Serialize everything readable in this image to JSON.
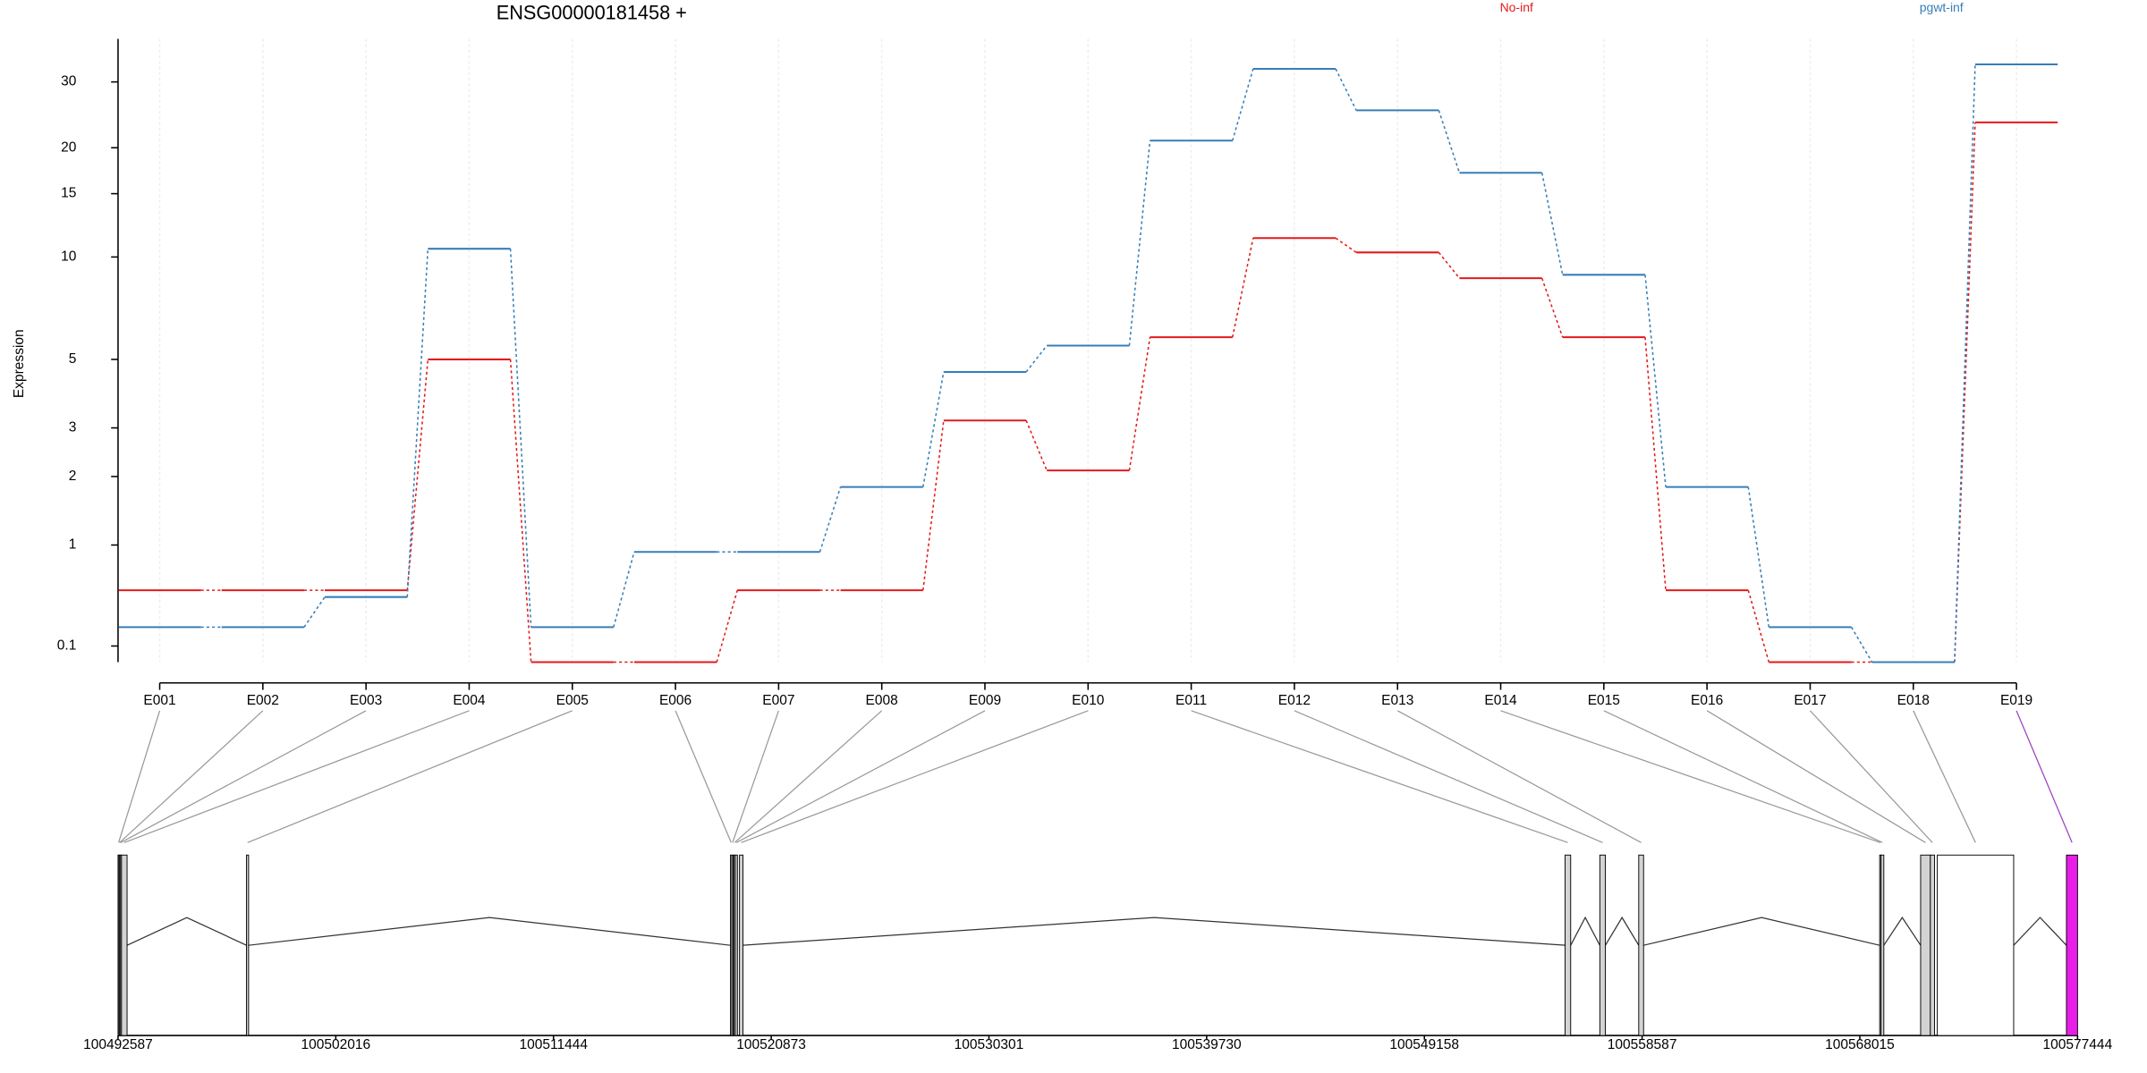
{
  "chart_data": {
    "type": "line",
    "title": "ENSG00000181458 +",
    "y_label": "Expression",
    "categories": [
      "E001",
      "E002",
      "E003",
      "E004",
      "E005",
      "E006",
      "E007",
      "E008",
      "E009",
      "E010",
      "E011",
      "E012",
      "E013",
      "E014",
      "E015",
      "E016",
      "E017",
      "E018",
      "E019"
    ],
    "series": [
      {
        "name": "No-inf",
        "color": "#e41a1c",
        "values": [
          0.53,
          0.53,
          0.53,
          5,
          0,
          0,
          0.53,
          0.53,
          3.18,
          2.11,
          5.84,
          11.3,
          10.3,
          8.7,
          5.84,
          0.53,
          0,
          0,
          23.4
        ]
      },
      {
        "name": "pgwt-inf",
        "color": "#377eb8",
        "values": [
          0.23,
          0.23,
          0.47,
          10.55,
          0.23,
          0.92,
          0.92,
          1.82,
          4.57,
          5.51,
          20.9,
          32.5,
          25.2,
          17.1,
          8.9,
          1.82,
          0.23,
          0,
          33.4
        ]
      }
    ],
    "ylim": [
      0,
      39
    ],
    "yticks": [
      0.1,
      1,
      2,
      3,
      5,
      10,
      15,
      20,
      30
    ],
    "yscale": "log1p",
    "grid": true
  },
  "gene_model": {
    "xlim": [
      100492587,
      100577444
    ],
    "xticks": [
      100492587,
      100502016,
      100511444,
      100520873,
      100530301,
      100539730,
      100549158,
      100558587,
      100568015,
      100577444
    ],
    "exons": [
      {
        "start": 100492587,
        "end": 100492635,
        "color": "#d3d3d3"
      },
      {
        "start": 100492635,
        "end": 100492677,
        "color": "#d3d3d3"
      },
      {
        "start": 100492677,
        "end": 100492737,
        "color": "#d3d3d3"
      },
      {
        "start": 100492737,
        "end": 100492978,
        "color": "#d3d3d3"
      },
      {
        "start": 100498150,
        "end": 100498240,
        "color": "#d3d3d3"
      },
      {
        "start": 100519109,
        "end": 100519169,
        "color": "#d3d3d3"
      },
      {
        "start": 100519169,
        "end": 100519229,
        "color": "#d3d3d3"
      },
      {
        "start": 100519259,
        "end": 100519319,
        "color": "#d3d3d3"
      },
      {
        "start": 100519319,
        "end": 100519409,
        "color": "#d3d3d3"
      },
      {
        "start": 100519499,
        "end": 100519650,
        "color": "#d3d3d3"
      },
      {
        "start": 100555252,
        "end": 100555493,
        "color": "#d3d3d3"
      },
      {
        "start": 100556756,
        "end": 100556996,
        "color": "#d3d3d3"
      },
      {
        "start": 100558440,
        "end": 100558650,
        "color": "#d3d3d3"
      },
      {
        "start": 100568874,
        "end": 100568934,
        "color": "#d3d3d3"
      },
      {
        "start": 100568934,
        "end": 100569054,
        "color": "#d3d3d3"
      },
      {
        "start": 100570648,
        "end": 100571069,
        "color": "#d3d3d3"
      },
      {
        "start": 100571069,
        "end": 100571250,
        "color": "#d3d3d3"
      },
      {
        "start": 100571370,
        "end": 100574677,
        "color": "#ffffff"
      },
      {
        "start": 100576963,
        "end": 100577444,
        "color": "#e81ee8"
      }
    ]
  }
}
